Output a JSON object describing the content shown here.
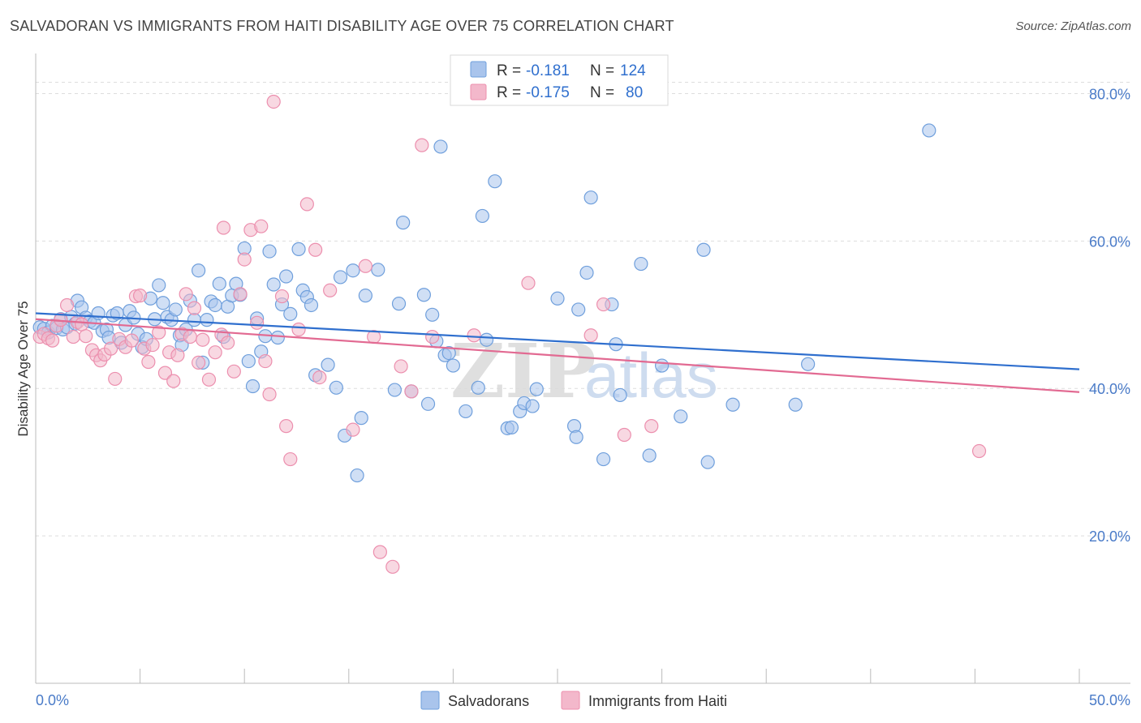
{
  "header": {
    "title": "SALVADORAN VS IMMIGRANTS FROM HAITI DISABILITY AGE OVER 75 CORRELATION CHART",
    "source": "Source: ZipAtlas.com"
  },
  "legend": {
    "rows": [
      {
        "r_label": "R =",
        "r_value": "-0.181",
        "n_label": "N =",
        "n_value": "124",
        "color": "#a9c4ec"
      },
      {
        "r_label": "R =",
        "r_value": "-0.175",
        "n_label": "N =",
        "n_value": "80",
        "color": "#f3b8cb"
      }
    ]
  },
  "watermark": {
    "zip": "ZIP",
    "atlas": "atlas"
  },
  "chart_data": {
    "type": "scatter",
    "title": "SALVADORAN VS IMMIGRANTS FROM HAITI DISABILITY AGE OVER 75 CORRELATION CHART",
    "xlabel": "",
    "ylabel": "Disability Age Over 75",
    "xlim": [
      0,
      50
    ],
    "ylim": [
      0,
      85
    ],
    "x_tick_labels": [
      "0.0%",
      "50.0%"
    ],
    "y_tick_labels": [
      "20.0%",
      "40.0%",
      "60.0%",
      "80.0%"
    ],
    "y_ticks": [
      20,
      40,
      60,
      80
    ],
    "grid": true,
    "legend_position": "top-center",
    "series": [
      {
        "name": "Salvadorans",
        "color": "#6f9fdc",
        "fill": "#a9c4ec",
        "line_color": "#2f6fce",
        "trend": {
          "x0": 0,
          "y0": 50.2,
          "x1": 50,
          "y1": 42.6
        },
        "points": [
          [
            0.2,
            48.3
          ],
          [
            0.4,
            48.1
          ],
          [
            0.6,
            47.6
          ],
          [
            0.8,
            48.5
          ],
          [
            1.0,
            48.2
          ],
          [
            1.2,
            49.4
          ],
          [
            1.3,
            48.0
          ],
          [
            1.5,
            48.3
          ],
          [
            1.7,
            49.7
          ],
          [
            1.9,
            48.8
          ],
          [
            2.0,
            51.9
          ],
          [
            2.2,
            51.0
          ],
          [
            2.4,
            49.6
          ],
          [
            2.6,
            49.1
          ],
          [
            2.8,
            48.9
          ],
          [
            3.0,
            50.2
          ],
          [
            3.2,
            47.8
          ],
          [
            3.4,
            48.0
          ],
          [
            3.5,
            46.9
          ],
          [
            3.7,
            49.9
          ],
          [
            3.9,
            50.2
          ],
          [
            4.1,
            46.2
          ],
          [
            4.3,
            48.6
          ],
          [
            4.5,
            50.5
          ],
          [
            4.7,
            49.6
          ],
          [
            4.9,
            47.4
          ],
          [
            5.1,
            45.6
          ],
          [
            5.3,
            46.7
          ],
          [
            5.5,
            52.2
          ],
          [
            5.7,
            49.4
          ],
          [
            5.9,
            54.0
          ],
          [
            6.1,
            51.6
          ],
          [
            6.3,
            49.7
          ],
          [
            6.5,
            49.3
          ],
          [
            6.7,
            50.7
          ],
          [
            6.9,
            47.2
          ],
          [
            7.0,
            45.9
          ],
          [
            7.2,
            48.0
          ],
          [
            7.4,
            51.9
          ],
          [
            7.6,
            49.3
          ],
          [
            7.8,
            56.0
          ],
          [
            8.0,
            43.5
          ],
          [
            8.2,
            49.3
          ],
          [
            8.4,
            51.8
          ],
          [
            8.6,
            51.3
          ],
          [
            8.8,
            54.2
          ],
          [
            9.0,
            47.0
          ],
          [
            9.2,
            51.1
          ],
          [
            9.4,
            52.6
          ],
          [
            9.6,
            54.2
          ],
          [
            9.8,
            52.7
          ],
          [
            10.0,
            59.0
          ],
          [
            10.2,
            43.7
          ],
          [
            10.4,
            40.3
          ],
          [
            10.6,
            49.5
          ],
          [
            10.8,
            45.0
          ],
          [
            11.0,
            47.1
          ],
          [
            11.2,
            58.6
          ],
          [
            11.4,
            54.1
          ],
          [
            11.6,
            46.9
          ],
          [
            11.8,
            51.4
          ],
          [
            12.0,
            55.2
          ],
          [
            12.2,
            50.1
          ],
          [
            12.6,
            58.9
          ],
          [
            12.8,
            53.3
          ],
          [
            13.0,
            52.4
          ],
          [
            13.2,
            51.3
          ],
          [
            13.4,
            41.8
          ],
          [
            14.0,
            43.2
          ],
          [
            14.4,
            40.1
          ],
          [
            14.6,
            55.1
          ],
          [
            14.8,
            33.6
          ],
          [
            15.2,
            56.0
          ],
          [
            15.4,
            28.2
          ],
          [
            15.6,
            36.0
          ],
          [
            15.8,
            52.6
          ],
          [
            16.4,
            56.1
          ],
          [
            17.2,
            39.8
          ],
          [
            17.4,
            51.5
          ],
          [
            17.6,
            62.5
          ],
          [
            18.0,
            39.6
          ],
          [
            18.6,
            52.7
          ],
          [
            18.8,
            37.9
          ],
          [
            19.0,
            50.0
          ],
          [
            19.2,
            46.4
          ],
          [
            19.4,
            72.8
          ],
          [
            19.6,
            44.5
          ],
          [
            19.8,
            44.8
          ],
          [
            20.0,
            43.1
          ],
          [
            20.6,
            36.9
          ],
          [
            21.2,
            40.1
          ],
          [
            21.4,
            63.4
          ],
          [
            21.6,
            46.6
          ],
          [
            22.0,
            68.1
          ],
          [
            22.6,
            34.6
          ],
          [
            22.8,
            34.7
          ],
          [
            23.2,
            36.9
          ],
          [
            23.4,
            38.0
          ],
          [
            23.8,
            37.6
          ],
          [
            24.0,
            39.9
          ],
          [
            25.0,
            52.2
          ],
          [
            25.8,
            34.9
          ],
          [
            25.9,
            33.4
          ],
          [
            26.0,
            50.7
          ],
          [
            26.4,
            55.7
          ],
          [
            26.6,
            65.9
          ],
          [
            27.2,
            30.4
          ],
          [
            27.6,
            51.4
          ],
          [
            27.8,
            46.0
          ],
          [
            28.0,
            39.1
          ],
          [
            29.0,
            56.9
          ],
          [
            29.4,
            30.9
          ],
          [
            30.0,
            43.1
          ],
          [
            30.9,
            36.2
          ],
          [
            32.0,
            58.8
          ],
          [
            32.2,
            30.0
          ],
          [
            33.4,
            37.8
          ],
          [
            36.4,
            37.8
          ],
          [
            37.0,
            43.3
          ],
          [
            42.8,
            75.0
          ]
        ]
      },
      {
        "name": "Immigrants from Haiti",
        "color": "#ec8fae",
        "fill": "#f3b8cb",
        "line_color": "#e26a92",
        "trend": {
          "x0": 0,
          "y0": 49.4,
          "x1": 50,
          "y1": 39.5
        },
        "points": [
          [
            0.2,
            47.0
          ],
          [
            0.4,
            47.4
          ],
          [
            0.6,
            46.8
          ],
          [
            0.8,
            46.5
          ],
          [
            1.0,
            48.5
          ],
          [
            1.2,
            49.3
          ],
          [
            1.5,
            51.3
          ],
          [
            1.8,
            47.0
          ],
          [
            2.0,
            49.0
          ],
          [
            2.2,
            48.7
          ],
          [
            2.4,
            47.1
          ],
          [
            2.7,
            45.2
          ],
          [
            2.9,
            44.5
          ],
          [
            3.1,
            43.8
          ],
          [
            3.3,
            44.6
          ],
          [
            3.6,
            45.4
          ],
          [
            3.8,
            41.3
          ],
          [
            4.0,
            46.7
          ],
          [
            4.3,
            45.6
          ],
          [
            4.6,
            46.5
          ],
          [
            4.8,
            52.5
          ],
          [
            5.0,
            52.6
          ],
          [
            5.2,
            45.4
          ],
          [
            5.4,
            43.6
          ],
          [
            5.6,
            45.9
          ],
          [
            5.9,
            47.6
          ],
          [
            6.2,
            42.1
          ],
          [
            6.4,
            44.9
          ],
          [
            6.6,
            41.0
          ],
          [
            6.8,
            44.5
          ],
          [
            7.0,
            47.4
          ],
          [
            7.2,
            52.8
          ],
          [
            7.4,
            47.0
          ],
          [
            7.6,
            50.9
          ],
          [
            7.8,
            43.5
          ],
          [
            8.0,
            46.6
          ],
          [
            8.3,
            41.2
          ],
          [
            8.6,
            44.9
          ],
          [
            8.9,
            47.3
          ],
          [
            9.0,
            61.8
          ],
          [
            9.2,
            46.2
          ],
          [
            9.5,
            42.3
          ],
          [
            9.8,
            52.8
          ],
          [
            10.0,
            57.5
          ],
          [
            10.3,
            61.5
          ],
          [
            10.6,
            48.9
          ],
          [
            10.8,
            62.0
          ],
          [
            11.0,
            43.7
          ],
          [
            11.2,
            39.2
          ],
          [
            11.4,
            78.9
          ],
          [
            11.8,
            52.5
          ],
          [
            12.0,
            34.9
          ],
          [
            12.2,
            30.4
          ],
          [
            12.6,
            48.0
          ],
          [
            13.0,
            65.0
          ],
          [
            13.4,
            58.8
          ],
          [
            13.6,
            41.5
          ],
          [
            14.1,
            53.3
          ],
          [
            15.2,
            34.4
          ],
          [
            15.8,
            56.6
          ],
          [
            16.2,
            47.0
          ],
          [
            16.5,
            17.8
          ],
          [
            17.1,
            15.8
          ],
          [
            17.5,
            43.0
          ],
          [
            18.0,
            39.6
          ],
          [
            18.5,
            73.0
          ],
          [
            19.0,
            47.0
          ],
          [
            21.0,
            47.2
          ],
          [
            23.6,
            54.3
          ],
          [
            26.6,
            47.2
          ],
          [
            27.2,
            51.4
          ],
          [
            28.2,
            33.7
          ],
          [
            29.5,
            34.9
          ],
          [
            45.2,
            31.5
          ]
        ]
      }
    ]
  },
  "bottom_legend": [
    {
      "label": "Salvadorans",
      "color": "#a9c4ec"
    },
    {
      "label": "Immigrants from Haiti",
      "color": "#f3b8cb"
    }
  ]
}
